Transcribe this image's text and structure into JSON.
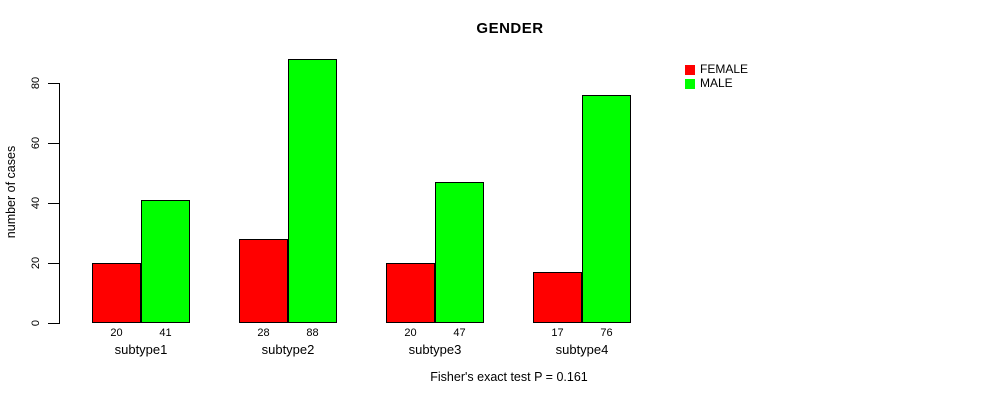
{
  "title": "GENDER",
  "note": "Fisher's exact test P = 0.161",
  "chart_data": {
    "type": "bar",
    "title": "GENDER",
    "xlabel": "",
    "ylabel": "number of cases",
    "categories": [
      "subtype1",
      "subtype2",
      "subtype3",
      "subtype4"
    ],
    "series": [
      {
        "name": "FEMALE",
        "color": "#ff0000",
        "values": [
          20,
          28,
          20,
          17
        ]
      },
      {
        "name": "MALE",
        "color": "#00ff00",
        "values": [
          41,
          88,
          47,
          76
        ]
      }
    ],
    "bar_value_labels": [
      [
        20,
        41
      ],
      [
        28,
        88
      ],
      [
        20,
        47
      ],
      [
        17,
        76
      ]
    ],
    "yticks": [
      0,
      20,
      40,
      60,
      80
    ],
    "ylim": [
      0,
      88
    ],
    "grid": false,
    "legend_position": "right-outside-top",
    "annotation": "Fisher's exact test P = 0.161",
    "annotation_position": "below-x-axis"
  }
}
